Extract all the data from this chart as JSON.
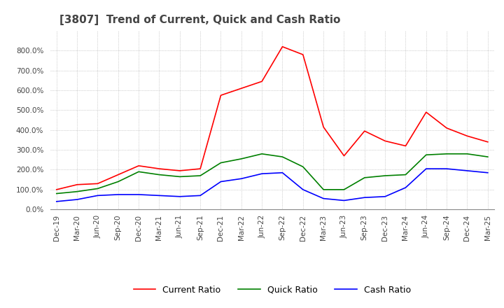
{
  "title": "[3807]  Trend of Current, Quick and Cash Ratio",
  "x_labels": [
    "Dec-19",
    "Mar-20",
    "Jun-20",
    "Sep-20",
    "Dec-20",
    "Mar-21",
    "Jun-21",
    "Sep-21",
    "Dec-21",
    "Mar-22",
    "Jun-22",
    "Sep-22",
    "Dec-22",
    "Mar-23",
    "Jun-23",
    "Sep-23",
    "Dec-23",
    "Mar-24",
    "Jun-24",
    "Sep-24",
    "Dec-24",
    "Mar-25"
  ],
  "current_ratio": [
    100,
    125,
    130,
    175,
    220,
    205,
    195,
    205,
    575,
    610,
    645,
    820,
    780,
    415,
    270,
    395,
    345,
    320,
    490,
    410,
    370,
    340
  ],
  "quick_ratio": [
    80,
    90,
    105,
    140,
    190,
    175,
    165,
    170,
    235,
    255,
    280,
    265,
    215,
    100,
    100,
    160,
    170,
    175,
    275,
    280,
    280,
    265
  ],
  "cash_ratio": [
    40,
    50,
    70,
    75,
    75,
    70,
    65,
    70,
    140,
    155,
    180,
    185,
    100,
    55,
    45,
    60,
    65,
    110,
    205,
    205,
    195,
    185
  ],
  "current_color": "#ff0000",
  "quick_color": "#008000",
  "cash_color": "#0000ff",
  "ylim": [
    0,
    900
  ],
  "yticks": [
    0,
    100,
    200,
    300,
    400,
    500,
    600,
    700,
    800
  ],
  "background_color": "#ffffff",
  "grid_color": "#aaaaaa"
}
